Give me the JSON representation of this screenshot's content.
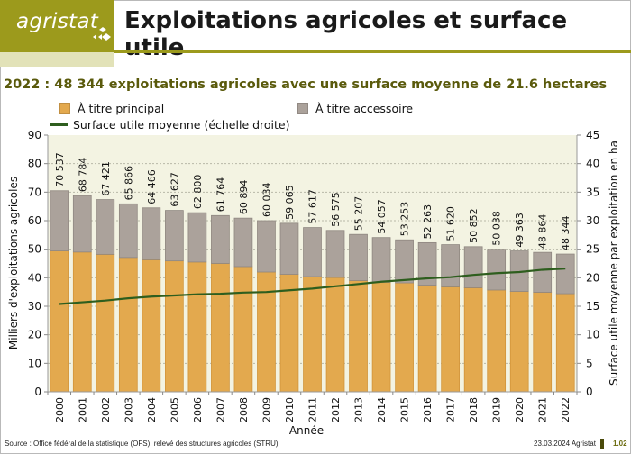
{
  "header": {
    "logo_text": "agristat",
    "title": "Exploitations agricoles et surface utile",
    "subtitle": "2022 : 48 344 exploitations agricoles avec une surface moyenne de 21.6 hectares",
    "brand_color": "#9c9a1c"
  },
  "legend": {
    "principal": "À titre principal",
    "accessoire": "À titre accessoire",
    "surface": "Surface utile moyenne (échelle droite)"
  },
  "footer": {
    "source": "Source : Office fédéral de la statistique (OFS), relevé des structures agricoles (STRU)",
    "date": "23.03.2024 Agristat",
    "page": "1.02"
  },
  "chart_data": {
    "type": "bar",
    "stacked": true,
    "title": "2022 : 48 344 exploitations agricoles avec une surface moyenne de 21.6 hectares",
    "xlabel": "Année",
    "ylabel": "Milliers d'exploitations agricoles",
    "y2label": "Surface utile moyenne par exploitation en ha",
    "ylim": [
      0,
      90
    ],
    "y2lim": [
      0,
      45
    ],
    "yticks": [
      0,
      10,
      20,
      30,
      40,
      50,
      60,
      70,
      80,
      90
    ],
    "y2ticks": [
      0,
      5,
      10,
      15,
      20,
      25,
      30,
      35,
      40,
      45
    ],
    "grid": true,
    "legend_position": "top",
    "categories": [
      "2000",
      "2001",
      "2002",
      "2003",
      "2004",
      "2005",
      "2006",
      "2007",
      "2008",
      "2009",
      "2010",
      "2011",
      "2012",
      "2013",
      "2014",
      "2015",
      "2016",
      "2017",
      "2018",
      "2019",
      "2020",
      "2021",
      "2022"
    ],
    "totals_labels": [
      "70 537",
      "68 784",
      "67 421",
      "65 866",
      "64 466",
      "63 627",
      "62 800",
      "61 764",
      "60 894",
      "60 034",
      "59 065",
      "57 617",
      "56 575",
      "55 207",
      "54 057",
      "53 253",
      "52 263",
      "51 620",
      "50 852",
      "50 038",
      "49 363",
      "48 864",
      "48 344"
    ],
    "totals": [
      70.537,
      68.784,
      67.421,
      65.866,
      64.466,
      63.627,
      62.8,
      61.764,
      60.894,
      60.034,
      59.065,
      57.617,
      56.575,
      55.207,
      54.057,
      53.253,
      52.263,
      51.62,
      50.852,
      50.038,
      49.363,
      48.864,
      48.344
    ],
    "series": [
      {
        "name": "À titre principal",
        "color": "#e3a94e",
        "values": [
          49.4,
          49.0,
          48.2,
          47.1,
          46.3,
          45.9,
          45.5,
          45.0,
          43.9,
          42.0,
          41.2,
          40.4,
          40.1,
          39.0,
          38.4,
          38.2,
          37.4,
          36.8,
          36.5,
          35.7,
          35.2,
          34.9,
          34.4
        ]
      },
      {
        "name": "À titre accessoire",
        "color": "#aba29b",
        "values": [
          21.1,
          19.8,
          19.2,
          18.8,
          18.2,
          17.7,
          17.3,
          16.8,
          17.0,
          18.0,
          17.9,
          17.2,
          16.5,
          16.2,
          15.7,
          15.1,
          14.9,
          14.8,
          14.4,
          14.3,
          14.2,
          14.0,
          13.9
        ]
      },
      {
        "name": "Surface utile moyenne (échelle droite)",
        "type": "line",
        "axis": "right",
        "color": "#2e5e1e",
        "values": [
          15.4,
          15.7,
          16.0,
          16.4,
          16.7,
          16.9,
          17.1,
          17.2,
          17.4,
          17.5,
          17.8,
          18.1,
          18.5,
          18.9,
          19.3,
          19.6,
          19.9,
          20.1,
          20.5,
          20.8,
          21.0,
          21.4,
          21.6
        ]
      }
    ]
  }
}
